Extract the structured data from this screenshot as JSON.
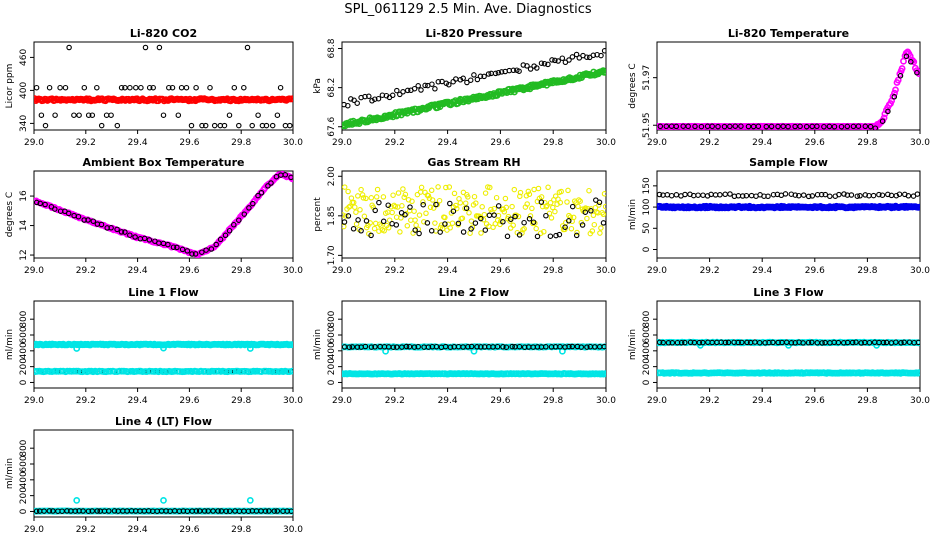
{
  "page": {
    "title": "SPL_061129  2.5 Min. Ave. Diagnostics"
  },
  "chart_data": [
    {
      "type": "scatter",
      "title": "Li-820 CO2",
      "xlabel": "",
      "ylabel": "Licor ppm",
      "xlim": [
        29.0,
        30.0
      ],
      "ylim": [
        328,
        488
      ],
      "xticks": [
        "29.0",
        "29.2",
        "29.4",
        "29.6",
        "29.8",
        "30.0"
      ],
      "yticks": [
        {
          "v": 340,
          "label": "340"
        },
        {
          "v": 400,
          "label": "400"
        },
        {
          "v": 460,
          "label": "460"
        }
      ],
      "series": [
        {
          "color": "#000000",
          "style": "scatter",
          "gen": "levels",
          "levels": [
            336,
            355,
            405,
            478
          ],
          "n": 55
        },
        {
          "color": "#ff0000",
          "style": "band",
          "gen": "flat",
          "y": 383,
          "noise": 2,
          "n": 180
        }
      ]
    },
    {
      "type": "scatter",
      "title": "Li-820 Pressure",
      "xlabel": "",
      "ylabel": "kPa",
      "xlim": [
        29.0,
        30.0
      ],
      "ylim": [
        67.55,
        68.9
      ],
      "xticks": [
        "29.0",
        "29.2",
        "29.4",
        "29.6",
        "29.8",
        "30.0"
      ],
      "yticks": [
        {
          "v": 67.6,
          "label": "67.6"
        },
        {
          "v": 68.2,
          "label": "68.2"
        },
        {
          "v": 68.8,
          "label": "68.8"
        }
      ],
      "series": [
        {
          "color": "#000000",
          "style": "scatter",
          "gen": "linear",
          "from": 67.95,
          "to": 68.75,
          "noise": 0.05,
          "n": 75
        },
        {
          "color": "#22bb22",
          "style": "band",
          "gen": "linear",
          "from": 67.62,
          "to": 68.45,
          "noise": 0.03,
          "n": 220
        }
      ]
    },
    {
      "type": "scatter",
      "title": "Li-820 Temperature",
      "xlabel": "",
      "ylabel": "degrees C",
      "xlim": [
        29.0,
        30.0
      ],
      "ylim": [
        51.948,
        51.985
      ],
      "xticks": [
        "29.0",
        "29.2",
        "29.4",
        "29.6",
        "29.8",
        "30.0"
      ],
      "yticks": [
        {
          "v": 51.95,
          "label": "51.95"
        },
        {
          "v": 51.97,
          "label": "51.97"
        }
      ],
      "series": [
        {
          "color": "#ff00ff",
          "style": "band",
          "gen": "spike",
          "base": 51.9495,
          "peak": 51.982,
          "start": 29.83,
          "top": 29.95,
          "end": 30.0,
          "noise": 0.0007,
          "n": 200
        },
        {
          "color": "#000000",
          "style": "scatter",
          "gen": "spike",
          "base": 51.9495,
          "peak": 51.979,
          "start": 29.83,
          "top": 29.95,
          "end": 30.0,
          "noise": 0.001,
          "n": 45
        }
      ]
    },
    {
      "type": "scatter",
      "title": "Ambient Box Temperature",
      "xlabel": "",
      "ylabel": "degrees C",
      "xlim": [
        29.0,
        30.0
      ],
      "ylim": [
        11.8,
        17.7
      ],
      "xticks": [
        "29.0",
        "29.2",
        "29.4",
        "29.6",
        "29.8",
        "30.0"
      ],
      "yticks": [
        {
          "v": 12,
          "label": "12"
        },
        {
          "v": 14,
          "label": "14"
        },
        {
          "v": 16,
          "label": "16"
        }
      ],
      "series": [
        {
          "color": "#ff00ff",
          "style": "band",
          "gen": "curve",
          "pts": [
            [
              29.0,
              15.7
            ],
            [
              29.2,
              14.4
            ],
            [
              29.4,
              13.2
            ],
            [
              29.55,
              12.5
            ],
            [
              29.63,
              12.0
            ],
            [
              29.7,
              12.6
            ],
            [
              29.8,
              14.6
            ],
            [
              29.9,
              16.7
            ],
            [
              29.95,
              17.5
            ],
            [
              30.0,
              17.2
            ]
          ],
          "noise": 0.05,
          "n": 180
        },
        {
          "color": "#000000",
          "style": "scatter",
          "gen": "curve",
          "pts": [
            [
              29.0,
              15.7
            ],
            [
              29.2,
              14.4
            ],
            [
              29.4,
              13.2
            ],
            [
              29.55,
              12.5
            ],
            [
              29.63,
              12.0
            ],
            [
              29.7,
              12.6
            ],
            [
              29.8,
              14.6
            ],
            [
              29.9,
              16.7
            ],
            [
              29.95,
              17.5
            ],
            [
              30.0,
              17.2
            ]
          ],
          "noise": 0.07,
          "n": 55
        }
      ]
    },
    {
      "type": "scatter",
      "title": "Gas Stream RH",
      "xlabel": "",
      "ylabel": "percent",
      "xlim": [
        29.0,
        30.0
      ],
      "ylim": [
        1.69,
        2.02
      ],
      "xticks": [
        "29.0",
        "29.2",
        "29.4",
        "29.6",
        "29.8",
        "30.0"
      ],
      "yticks": [
        {
          "v": 1.7,
          "label": "1.70"
        },
        {
          "v": 1.85,
          "label": "1.85"
        },
        {
          "v": 2.0,
          "label": "2.00"
        }
      ],
      "series": [
        {
          "color": "#eeee00",
          "style": "scatter",
          "gen": "noisy",
          "y": 1.87,
          "noise": 0.09,
          "n": 240
        },
        {
          "color": "#000000",
          "style": "scatter",
          "gen": "noisy",
          "y": 1.84,
          "noise": 0.07,
          "n": 60
        }
      ]
    },
    {
      "type": "scatter",
      "title": "Sample Flow",
      "xlabel": "",
      "ylabel": "ml/min",
      "xlim": [
        29.0,
        30.0
      ],
      "ylim": [
        -20,
        185
      ],
      "xticks": [
        "29.0",
        "29.2",
        "29.4",
        "29.6",
        "29.8",
        "30.0"
      ],
      "yticks": [
        {
          "v": 0,
          "label": "0"
        },
        {
          "v": 50,
          "label": "50"
        },
        {
          "v": 100,
          "label": "100"
        },
        {
          "v": 150,
          "label": "150"
        }
      ],
      "series": [
        {
          "color": "#000000",
          "style": "scatter",
          "gen": "flat",
          "y": 128,
          "noise": 3,
          "n": 60
        },
        {
          "color": "#0000ee",
          "style": "band",
          "gen": "flat",
          "y": 100,
          "noise": 2,
          "n": 200
        }
      ]
    },
    {
      "type": "scatter",
      "title": "Line 1 Flow",
      "xlabel": "",
      "ylabel": "ml/min",
      "xlim": [
        29.0,
        30.0
      ],
      "ylim": [
        -70,
        1030
      ],
      "xticks": [
        "29.0",
        "29.2",
        "29.4",
        "29.6",
        "29.8",
        "30.0"
      ],
      "yticks": [
        {
          "v": 0,
          "label": "0"
        },
        {
          "v": 200,
          "label": "200"
        },
        {
          "v": 400,
          "label": "400"
        },
        {
          "v": 600,
          "label": "600"
        },
        {
          "v": 800,
          "label": "800"
        }
      ],
      "series": [
        {
          "color": "#00e5e5",
          "style": "band",
          "gen": "flat",
          "y": 480,
          "noise": 6,
          "n": 190,
          "outliers": [
            [
              29.165,
              430
            ],
            [
              29.5,
              435
            ],
            [
              29.835,
              430
            ],
            [
              29.005,
              140
            ]
          ]
        },
        {
          "color": "#000000",
          "style": "scatter",
          "gen": "flat",
          "y": 140,
          "noise": 4,
          "n": 60
        },
        {
          "color": "#00e5e5",
          "style": "band",
          "gen": "flat",
          "y": 140,
          "noise": 4,
          "n": 120
        }
      ]
    },
    {
      "type": "scatter",
      "title": "Line 2 Flow",
      "xlabel": "",
      "ylabel": "ml/min",
      "xlim": [
        29.0,
        30.0
      ],
      "ylim": [
        -70,
        1030
      ],
      "xticks": [
        "29.0",
        "29.2",
        "29.4",
        "29.6",
        "29.8",
        "30.0"
      ],
      "yticks": [
        {
          "v": 0,
          "label": "0"
        },
        {
          "v": 200,
          "label": "200"
        },
        {
          "v": 400,
          "label": "400"
        },
        {
          "v": 600,
          "label": "600"
        },
        {
          "v": 800,
          "label": "800"
        }
      ],
      "series": [
        {
          "color": "#00e5e5",
          "style": "band",
          "gen": "flat",
          "y": 110,
          "noise": 4,
          "n": 170,
          "outliers": [
            [
              29.165,
              395
            ],
            [
              29.5,
              395
            ],
            [
              29.835,
              395
            ],
            [
              29.005,
              450
            ]
          ]
        },
        {
          "color": "#00e5e5",
          "style": "band",
          "gen": "flat",
          "y": 450,
          "noise": 4,
          "n": 120
        },
        {
          "color": "#000000",
          "style": "scatter",
          "gen": "flat",
          "y": 450,
          "noise": 5,
          "n": 60
        }
      ]
    },
    {
      "type": "scatter",
      "title": "Line 3 Flow",
      "xlabel": "",
      "ylabel": "ml/min",
      "xlim": [
        29.0,
        30.0
      ],
      "ylim": [
        -70,
        1030
      ],
      "xticks": [
        "29.0",
        "29.2",
        "29.4",
        "29.6",
        "29.8",
        "30.0"
      ],
      "yticks": [
        {
          "v": 0,
          "label": "0"
        },
        {
          "v": 200,
          "label": "200"
        },
        {
          "v": 400,
          "label": "400"
        },
        {
          "v": 600,
          "label": "600"
        },
        {
          "v": 800,
          "label": "800"
        }
      ],
      "series": [
        {
          "color": "#00e5e5",
          "style": "band",
          "gen": "flat",
          "y": 120,
          "noise": 4,
          "n": 170,
          "outliers": [
            [
              29.165,
              470
            ],
            [
              29.5,
              470
            ],
            [
              29.835,
              470
            ],
            [
              29.005,
              500
            ]
          ]
        },
        {
          "color": "#00e5e5",
          "style": "band",
          "gen": "flat",
          "y": 505,
          "noise": 4,
          "n": 120
        },
        {
          "color": "#000000",
          "style": "scatter",
          "gen": "flat",
          "y": 505,
          "noise": 5,
          "n": 60
        }
      ]
    },
    {
      "type": "scatter",
      "title": "Line 4 (LT) Flow",
      "xlabel": "",
      "ylabel": "ml/min",
      "xlim": [
        29.0,
        30.0
      ],
      "ylim": [
        -70,
        1030
      ],
      "xticks": [
        "29.0",
        "29.2",
        "29.4",
        "29.6",
        "29.8",
        "30.0"
      ],
      "yticks": [
        {
          "v": 0,
          "label": "0"
        },
        {
          "v": 200,
          "label": "200"
        },
        {
          "v": 400,
          "label": "400"
        },
        {
          "v": 600,
          "label": "600"
        },
        {
          "v": 800,
          "label": "800"
        }
      ],
      "series": [
        {
          "color": "#00e5e5",
          "style": "band",
          "gen": "flat",
          "y": 5,
          "noise": 2,
          "n": 170,
          "outliers": [
            [
              29.165,
              140
            ],
            [
              29.5,
              140
            ],
            [
              29.835,
              140
            ]
          ]
        },
        {
          "color": "#000000",
          "style": "scatter",
          "gen": "flat",
          "y": 5,
          "noise": 2,
          "n": 60
        }
      ]
    }
  ]
}
